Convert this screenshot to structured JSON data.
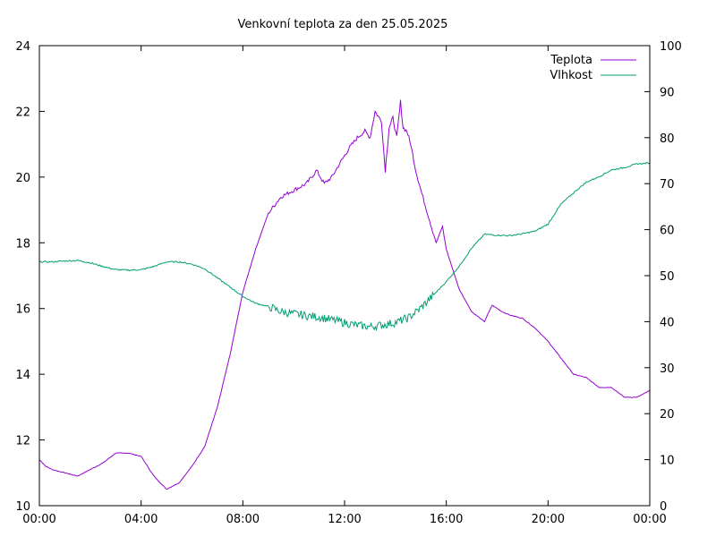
{
  "chart_data": {
    "type": "line",
    "title": "Venkovní teplota za den 25.05.2025",
    "xlabel": "",
    "ylabel": "",
    "y2label": "",
    "xlim": [
      0,
      24
    ],
    "ylim": [
      10,
      24
    ],
    "y2lim": [
      0,
      100
    ],
    "x_ticks": [
      "00:00",
      "04:00",
      "08:00",
      "12:00",
      "16:00",
      "20:00",
      "00:00"
    ],
    "y_ticks": [
      "10",
      "12",
      "14",
      "16",
      "18",
      "20",
      "22",
      "24"
    ],
    "y2_ticks": [
      "0",
      "10",
      "20",
      "30",
      "40",
      "50",
      "60",
      "70",
      "80",
      "90",
      "100"
    ],
    "grid": false,
    "legend_position": "top-right",
    "colors": {
      "Teplota": "#9400d3",
      "Vlhkost": "#009e73"
    },
    "series": [
      {
        "name": "Teplota",
        "axis": "left",
        "x": [
          0,
          0.25,
          0.5,
          1.0,
          1.5,
          2.0,
          2.5,
          3.0,
          3.5,
          4.0,
          4.5,
          5.0,
          5.5,
          6.0,
          6.5,
          7.0,
          7.5,
          8.0,
          8.5,
          9.0,
          9.5,
          10.0,
          10.5,
          10.9,
          11.2,
          11.5,
          11.8,
          12.2,
          12.5,
          12.8,
          13.0,
          13.2,
          13.45,
          13.6,
          13.75,
          13.9,
          14.05,
          14.2,
          14.3,
          14.45,
          14.6,
          14.8,
          15.0,
          15.3,
          15.6,
          15.85,
          16.0,
          16.5,
          17.0,
          17.5,
          17.8,
          18.2,
          18.5,
          19.0,
          19.5,
          20.0,
          20.5,
          21.0,
          21.5,
          22.0,
          22.5,
          23.0,
          23.5,
          24.0
        ],
        "values": [
          11.4,
          11.2,
          11.1,
          11.0,
          10.9,
          11.1,
          11.3,
          11.6,
          11.6,
          11.5,
          10.9,
          10.5,
          10.7,
          11.2,
          11.8,
          13.0,
          14.6,
          16.5,
          17.8,
          18.9,
          19.4,
          19.6,
          19.8,
          20.2,
          19.8,
          20.0,
          20.4,
          20.9,
          21.2,
          21.4,
          21.2,
          22.0,
          21.7,
          20.2,
          21.5,
          21.8,
          21.2,
          22.3,
          21.5,
          21.4,
          21.0,
          20.2,
          19.6,
          18.8,
          18.0,
          18.5,
          17.8,
          16.6,
          15.9,
          15.6,
          16.1,
          15.9,
          15.8,
          15.7,
          15.4,
          15.0,
          14.5,
          14.0,
          13.9,
          13.6,
          13.6,
          13.3,
          13.3,
          13.5
        ]
      },
      {
        "name": "Vlhkost",
        "axis": "right",
        "x": [
          0,
          0.5,
          1.0,
          1.5,
          2.0,
          2.5,
          3.0,
          3.5,
          4.0,
          4.5,
          5.0,
          5.5,
          6.0,
          6.5,
          7.0,
          7.5,
          8.0,
          8.5,
          9.0,
          9.5,
          10.0,
          10.5,
          11.0,
          11.5,
          12.0,
          12.5,
          13.0,
          13.5,
          14.0,
          14.5,
          15.0,
          15.5,
          16.0,
          16.5,
          17.0,
          17.5,
          18.0,
          18.5,
          19.0,
          19.5,
          20.0,
          20.5,
          21.0,
          21.5,
          22.0,
          22.5,
          23.0,
          23.5,
          24.0
        ],
        "values": [
          53.0,
          53.0,
          53.2,
          53.3,
          52.8,
          52.0,
          51.3,
          51.2,
          51.3,
          52.0,
          53.0,
          53.0,
          52.5,
          51.5,
          49.5,
          47.5,
          45.5,
          44.0,
          43.3,
          42.2,
          41.7,
          41.3,
          41.0,
          40.4,
          39.8,
          39.2,
          38.9,
          39.3,
          39.8,
          40.8,
          43.0,
          45.8,
          48.7,
          52.0,
          56.0,
          59.0,
          58.8,
          58.7,
          59.1,
          59.7,
          61.2,
          65.5,
          68.0,
          70.3,
          71.5,
          73.0,
          73.5,
          74.3,
          74.5
        ]
      }
    ]
  }
}
